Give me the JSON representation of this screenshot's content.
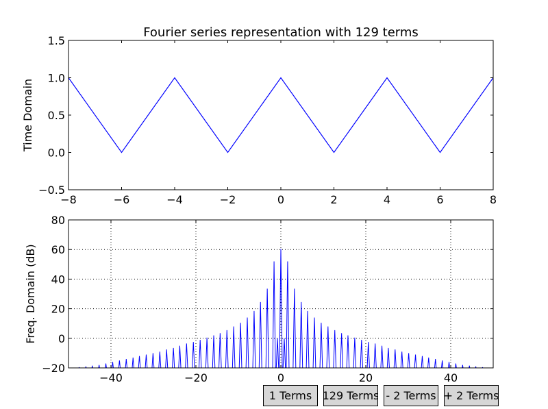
{
  "chart_data": [
    {
      "type": "line",
      "title": "Fourier series representation with 129 terms",
      "xlabel": "",
      "ylabel": "Time Domain",
      "xlim": [
        -8,
        8
      ],
      "ylim": [
        -0.5,
        1.5
      ],
      "xticks": [
        "−8",
        "−6",
        "−4",
        "−2",
        "0",
        "2",
        "4",
        "6",
        "8"
      ],
      "yticks": [
        "−0.5",
        "0.0",
        "0.5",
        "1.0",
        "1.5"
      ],
      "grid": false,
      "series": [
        {
          "color": "#0000ff",
          "x": [
            -8,
            -6,
            -4,
            -2,
            0,
            2,
            4,
            6,
            8
          ],
          "y": [
            1,
            0,
            1,
            0,
            1,
            0,
            1,
            0,
            1
          ]
        }
      ]
    },
    {
      "type": "line",
      "title": "",
      "xlabel": "",
      "ylabel": "Freq. Domain (dB)",
      "xlim": [
        -50,
        50
      ],
      "ylim": [
        -20,
        80
      ],
      "xticks": [
        "−40",
        "−20",
        "0",
        "20",
        "40"
      ],
      "yticks": [
        "−20",
        "0",
        "20",
        "40",
        "60",
        "80"
      ],
      "grid": true,
      "series": [
        {
          "color": "#0000ff",
          "peaks_x": [
            -47.5,
            -45.9,
            -44.4,
            -42.8,
            -41.2,
            -39.6,
            -38.0,
            -36.4,
            -34.8,
            -33.3,
            -31.7,
            -30.1,
            -28.5,
            -26.9,
            -25.3,
            -23.8,
            -22.2,
            -20.6,
            -19.0,
            -17.4,
            -15.8,
            -14.3,
            -12.7,
            -11.1,
            -9.5,
            -7.9,
            -6.3,
            -4.8,
            -3.2,
            -1.6,
            -0.8,
            0,
            0.8,
            1.6,
            3.2,
            4.8,
            6.3,
            7.9,
            9.5,
            11.1,
            12.7,
            14.3,
            15.8,
            17.4,
            19.0,
            20.6,
            22.2,
            23.8,
            25.3,
            26.9,
            28.5,
            30.1,
            31.7,
            33.3,
            34.8,
            36.4,
            38.0,
            39.6,
            41.2,
            42.8,
            44.4,
            45.9,
            47.5
          ],
          "peaks_db": [
            -19.5,
            -19,
            -18.5,
            -18,
            -17,
            -16,
            -15,
            -14,
            -13,
            -12,
            -11,
            -10,
            -9,
            -7.5,
            -6.5,
            -5,
            -3.5,
            -2.5,
            -1,
            0.5,
            2,
            3.5,
            5.5,
            8,
            10.5,
            14,
            18.5,
            24.5,
            33.5,
            52,
            0,
            60.5,
            0,
            52,
            33.5,
            24.5,
            18.5,
            14,
            10.5,
            8,
            5.5,
            3.5,
            2,
            0.5,
            -1,
            -2.5,
            -3.5,
            -5,
            -6.5,
            -7.5,
            -9,
            -10,
            -11,
            -12,
            -13,
            -14,
            -15,
            -16,
            -17,
            -18,
            -18.5,
            -19,
            -19.5
          ]
        }
      ]
    }
  ],
  "buttons": {
    "one_terms": "1 Terms",
    "current_terms": "129 Terms",
    "minus_two": "- 2 Terms",
    "plus_two": "+ 2 Terms"
  }
}
